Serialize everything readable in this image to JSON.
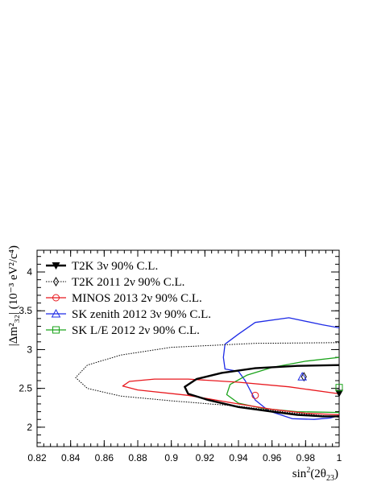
{
  "chart_data": {
    "type": "line",
    "xlabel_main": "sin",
    "xlabel_sup": "2",
    "xlabel_rest": "(2θ",
    "xlabel_sub": "23",
    "xlabel_end": ")",
    "ylabel": "|Δm²₃₂| (10⁻³ eV²/c⁴)",
    "xlim": [
      0.82,
      1.0
    ],
    "ylim": [
      1.75,
      4.28
    ],
    "x_ticks": [
      "0.82",
      "0.84",
      "0.86",
      "0.88",
      "0.9",
      "0.92",
      "0.94",
      "0.96",
      "0.98",
      "1"
    ],
    "y_ticks": [
      "2",
      "2.5",
      "3",
      "3.5",
      "4"
    ],
    "x_tick_values": [
      0.82,
      0.84,
      0.86,
      0.88,
      0.9,
      0.92,
      0.94,
      0.96,
      0.98,
      1.0
    ],
    "y_tick_values": [
      2.0,
      2.5,
      3.0,
      3.5,
      4.0
    ],
    "series": [
      {
        "name": "T2K 3ν 90% C.L.",
        "color": "#000000",
        "style": "thick",
        "marker": "filled-triangle-down",
        "best_fit": [
          1.0,
          2.44
        ],
        "points": [
          [
            1.0,
            2.8
          ],
          [
            0.975,
            2.79
          ],
          [
            0.95,
            2.76
          ],
          [
            0.93,
            2.7
          ],
          [
            0.915,
            2.62
          ],
          [
            0.908,
            2.52
          ],
          [
            0.91,
            2.43
          ],
          [
            0.922,
            2.35
          ],
          [
            0.94,
            2.26
          ],
          [
            0.96,
            2.2
          ],
          [
            0.975,
            2.16
          ],
          [
            0.99,
            2.14
          ],
          [
            1.0,
            2.14
          ]
        ]
      },
      {
        "name": "T2K 2011 2ν 90% C.L.",
        "color": "#000000",
        "style": "dotted",
        "marker": "open-diamond",
        "best_fit": [
          0.979,
          2.65
        ],
        "points": [
          [
            1.0,
            3.09
          ],
          [
            0.95,
            3.08
          ],
          [
            0.9,
            3.03
          ],
          [
            0.87,
            2.93
          ],
          [
            0.85,
            2.8
          ],
          [
            0.843,
            2.64
          ],
          [
            0.85,
            2.5
          ],
          [
            0.87,
            2.4
          ],
          [
            0.9,
            2.34
          ],
          [
            0.94,
            2.27
          ],
          [
            0.97,
            2.19
          ],
          [
            1.0,
            2.13
          ]
        ]
      },
      {
        "name": "MINOS 2013 2ν 90% C.L.",
        "color": "#e8181e",
        "style": "solid",
        "marker": "open-circle",
        "best_fit": [
          0.95,
          2.41
        ],
        "points": [
          [
            1.0,
            2.43
          ],
          [
            0.97,
            2.52
          ],
          [
            0.94,
            2.58
          ],
          [
            0.91,
            2.62
          ],
          [
            0.89,
            2.62
          ],
          [
            0.875,
            2.59
          ],
          [
            0.871,
            2.53
          ],
          [
            0.88,
            2.48
          ],
          [
            0.91,
            2.41
          ],
          [
            0.94,
            2.3
          ],
          [
            0.96,
            2.23
          ],
          [
            0.98,
            2.18
          ],
          [
            1.0,
            2.16
          ]
        ]
      },
      {
        "name": "SK zenith 2012 3ν 90% C.L.",
        "color": "#1e2be6",
        "style": "solid",
        "marker": "open-triangle-up",
        "best_fit": [
          0.978,
          2.65
        ],
        "points": [
          [
            1.0,
            3.28
          ],
          [
            0.99,
            3.32
          ],
          [
            0.97,
            3.41
          ],
          [
            0.95,
            3.35
          ],
          [
            0.94,
            3.2
          ],
          [
            0.932,
            3.07
          ],
          [
            0.931,
            2.9
          ],
          [
            0.932,
            2.75
          ],
          [
            0.94,
            2.72
          ],
          [
            0.944,
            2.6
          ],
          [
            0.95,
            2.35
          ],
          [
            0.958,
            2.21
          ],
          [
            0.972,
            2.11
          ],
          [
            0.985,
            2.1
          ],
          [
            0.995,
            2.12
          ],
          [
            1.0,
            2.15
          ]
        ]
      },
      {
        "name": "SK L/E 2012 2ν 90% C.L.",
        "color": "#1aa31a",
        "style": "solid",
        "marker": "open-square",
        "best_fit": [
          1.0,
          2.51
        ],
        "points": [
          [
            1.0,
            2.9
          ],
          [
            0.98,
            2.85
          ],
          [
            0.96,
            2.77
          ],
          [
            0.945,
            2.67
          ],
          [
            0.935,
            2.55
          ],
          [
            0.933,
            2.42
          ],
          [
            0.94,
            2.31
          ],
          [
            0.955,
            2.24
          ],
          [
            0.975,
            2.2
          ],
          [
            1.0,
            2.19
          ]
        ]
      }
    ]
  }
}
